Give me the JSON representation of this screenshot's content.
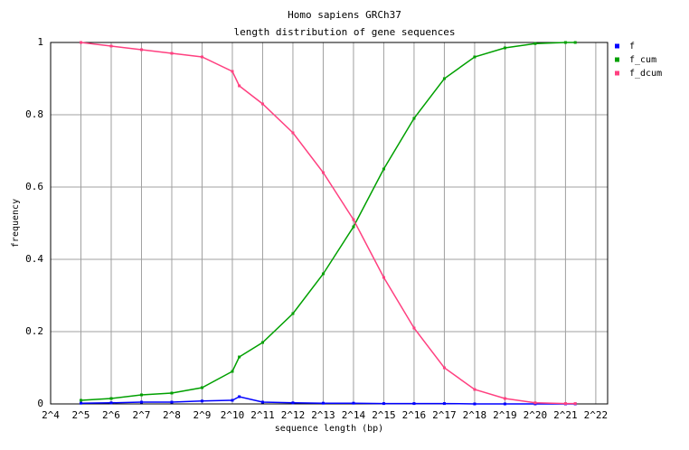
{
  "chart_data": {
    "type": "line",
    "title": "Homo sapiens GRCh37",
    "subtitle": "length distribution of gene sequences",
    "x_label": "sequence length (bp)",
    "y_label": "frequency",
    "log_x": true,
    "log_base": 2,
    "grid": true,
    "legend": "right",
    "x": [
      32,
      64,
      128,
      256,
      512,
      1024,
      1200,
      2048,
      4096,
      8192,
      16384,
      32768,
      65536,
      131072,
      262144,
      524288,
      1048576,
      2097152,
      2621440
    ],
    "series": [
      {
        "name": "f",
        "color": "#0000ff",
        "values": [
          0.002,
          0.003,
          0.005,
          0.005,
          0.008,
          0.01,
          0.02,
          0.005,
          0.003,
          0.002,
          0.002,
          0.001,
          0.001,
          0.001,
          0,
          0,
          0,
          0,
          0
        ]
      },
      {
        "name": "f_cum",
        "color": "#00a000",
        "values": [
          0.01,
          0.015,
          0.025,
          0.03,
          0.045,
          0.09,
          0.13,
          0.17,
          0.25,
          0.36,
          0.49,
          0.65,
          0.79,
          0.9,
          0.96,
          0.985,
          0.997,
          1,
          1
        ]
      },
      {
        "name": "f_dcum",
        "color": "#ff4080",
        "values": [
          1,
          0.99,
          0.98,
          0.97,
          0.96,
          0.92,
          0.88,
          0.83,
          0.75,
          0.64,
          0.51,
          0.35,
          0.21,
          0.1,
          0.04,
          0.015,
          0.003,
          0.001,
          0.001
        ]
      }
    ],
    "xlim": [
      16,
      5500000
    ],
    "xticks": [
      {
        "value": 16,
        "label": "2^4"
      },
      {
        "value": 32,
        "label": "2^5"
      },
      {
        "value": 64,
        "label": "2^6"
      },
      {
        "value": 128,
        "label": "2^7"
      },
      {
        "value": 256,
        "label": "2^8"
      },
      {
        "value": 512,
        "label": "2^9"
      },
      {
        "value": 1024,
        "label": "2^10"
      },
      {
        "value": 2048,
        "label": "2^11"
      },
      {
        "value": 4096,
        "label": "2^12"
      },
      {
        "value": 8192,
        "label": "2^13"
      },
      {
        "value": 16384,
        "label": "2^14"
      },
      {
        "value": 32768,
        "label": "2^15"
      },
      {
        "value": 65536,
        "label": "2^16"
      },
      {
        "value": 131072,
        "label": "2^17"
      },
      {
        "value": 262144,
        "label": "2^18"
      },
      {
        "value": 524288,
        "label": "2^19"
      },
      {
        "value": 1048576,
        "label": "2^20"
      },
      {
        "value": 2097152,
        "label": "2^21"
      },
      {
        "value": 4194304,
        "label": "2^22"
      }
    ],
    "ylim": [
      0,
      1
    ],
    "yticks": [
      0,
      0.2,
      0.4,
      0.6,
      0.8,
      1
    ]
  }
}
